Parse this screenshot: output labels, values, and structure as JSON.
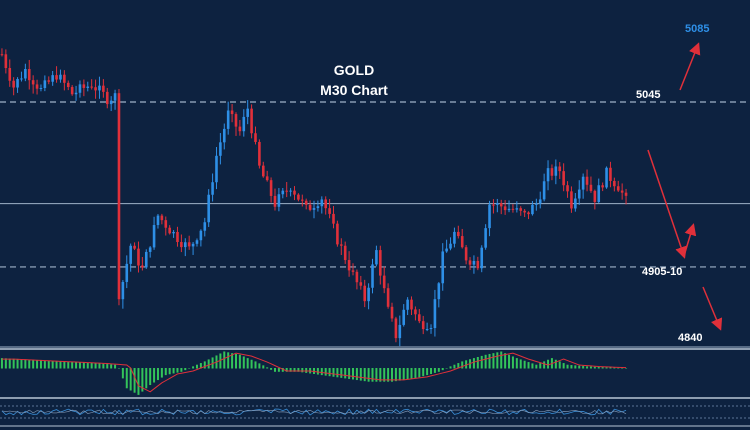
{
  "chart_data": {
    "type": "candlestick",
    "title": "GOLD",
    "subtitle": "M30 Chart",
    "colors": {
      "background": "#0d2240",
      "bull": "#2e8fe6",
      "bear": "#e0303a",
      "level_line": "#9fb2c8",
      "arrow": "#e0303a",
      "target_text": "#2e8fe6",
      "histogram": "#33c45a",
      "signal_line": "#e0303a"
    },
    "levels": [
      {
        "value": 5045,
        "label": "5045",
        "style": "dashed"
      },
      {
        "value": 4960,
        "label": "",
        "style": "solid"
      },
      {
        "value": 4907,
        "label": "4905-10",
        "style": "dashed"
      },
      {
        "value": 4840,
        "label": "4840",
        "style": "solid"
      }
    ],
    "targets": [
      {
        "value": 5085,
        "label": "5085",
        "color": "#2e8fe6"
      }
    ],
    "ylim": [
      4830,
      5095
    ],
    "price_path": [
      {
        "i": 0,
        "p": 5085
      },
      {
        "i": 3,
        "p": 5058
      },
      {
        "i": 6,
        "p": 5072
      },
      {
        "i": 10,
        "p": 5055
      },
      {
        "i": 14,
        "p": 5068
      },
      {
        "i": 18,
        "p": 5052
      },
      {
        "i": 23,
        "p": 5060
      },
      {
        "i": 27,
        "p": 5048
      },
      {
        "i": 29,
        "p": 5050
      },
      {
        "i": 30,
        "p": 4880
      },
      {
        "i": 33,
        "p": 4925
      },
      {
        "i": 36,
        "p": 4905
      },
      {
        "i": 40,
        "p": 4950
      },
      {
        "i": 44,
        "p": 4935
      },
      {
        "i": 48,
        "p": 4922
      },
      {
        "i": 52,
        "p": 4945
      },
      {
        "i": 55,
        "p": 5000
      },
      {
        "i": 58,
        "p": 5035
      },
      {
        "i": 61,
        "p": 5020
      },
      {
        "i": 63,
        "p": 5040
      },
      {
        "i": 66,
        "p": 4990
      },
      {
        "i": 70,
        "p": 4960
      },
      {
        "i": 74,
        "p": 4975
      },
      {
        "i": 78,
        "p": 4955
      },
      {
        "i": 82,
        "p": 4965
      },
      {
        "i": 86,
        "p": 4930
      },
      {
        "i": 90,
        "p": 4900
      },
      {
        "i": 93,
        "p": 4880
      },
      {
        "i": 96,
        "p": 4920
      },
      {
        "i": 99,
        "p": 4870
      },
      {
        "i": 101,
        "p": 4850
      },
      {
        "i": 104,
        "p": 4880
      },
      {
        "i": 107,
        "p": 4860
      },
      {
        "i": 110,
        "p": 4860
      },
      {
        "i": 113,
        "p": 4915
      },
      {
        "i": 116,
        "p": 4935
      },
      {
        "i": 119,
        "p": 4915
      },
      {
        "i": 122,
        "p": 4910
      },
      {
        "i": 125,
        "p": 4960
      },
      {
        "i": 128,
        "p": 4958
      },
      {
        "i": 131,
        "p": 4955
      },
      {
        "i": 134,
        "p": 4950
      },
      {
        "i": 137,
        "p": 4960
      },
      {
        "i": 140,
        "p": 4985
      },
      {
        "i": 143,
        "p": 4988
      },
      {
        "i": 146,
        "p": 4960
      },
      {
        "i": 149,
        "p": 4985
      },
      {
        "i": 152,
        "p": 4965
      },
      {
        "i": 155,
        "p": 4985
      },
      {
        "i": 158,
        "p": 4975
      },
      {
        "i": 160,
        "p": 4962
      }
    ],
    "macd_hist": [
      {
        "i": 0,
        "v": 3
      },
      {
        "i": 8,
        "v": 2.5
      },
      {
        "i": 16,
        "v": 2
      },
      {
        "i": 24,
        "v": 1.5
      },
      {
        "i": 29,
        "v": 1
      },
      {
        "i": 30,
        "v": 0
      },
      {
        "i": 32,
        "v": -6
      },
      {
        "i": 35,
        "v": -8
      },
      {
        "i": 38,
        "v": -5
      },
      {
        "i": 42,
        "v": -2
      },
      {
        "i": 46,
        "v": -1
      },
      {
        "i": 52,
        "v": 2
      },
      {
        "i": 57,
        "v": 5
      },
      {
        "i": 61,
        "v": 4
      },
      {
        "i": 65,
        "v": 2
      },
      {
        "i": 70,
        "v": -1
      },
      {
        "i": 76,
        "v": -1
      },
      {
        "i": 82,
        "v": -2
      },
      {
        "i": 88,
        "v": -3
      },
      {
        "i": 94,
        "v": -4
      },
      {
        "i": 100,
        "v": -4
      },
      {
        "i": 106,
        "v": -3
      },
      {
        "i": 112,
        "v": -1
      },
      {
        "i": 118,
        "v": 2
      },
      {
        "i": 124,
        "v": 4
      },
      {
        "i": 128,
        "v": 5
      },
      {
        "i": 132,
        "v": 3
      },
      {
        "i": 137,
        "v": 1
      },
      {
        "i": 141,
        "v": 3
      },
      {
        "i": 145,
        "v": 1
      },
      {
        "i": 150,
        "v": 0.5
      },
      {
        "i": 155,
        "v": 0.2
      },
      {
        "i": 160,
        "v": 0
      }
    ]
  }
}
